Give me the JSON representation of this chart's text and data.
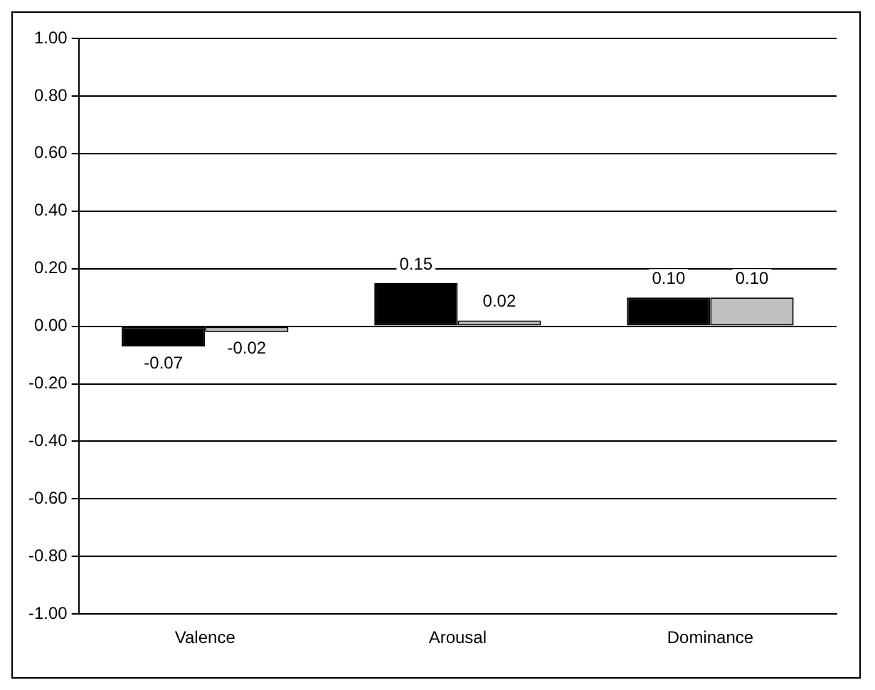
{
  "chart_data": {
    "type": "bar",
    "categories": [
      "Valence",
      "Arousal",
      "Dominance"
    ],
    "series": [
      {
        "color": "#000000",
        "values": [
          -0.07,
          0.15,
          0.1
        ],
        "value_labels": [
          "-0.07",
          "0.15",
          "0.10"
        ]
      },
      {
        "color": "#c0c0c0",
        "values": [
          -0.02,
          0.02,
          0.1
        ],
        "value_labels": [
          "-0.02",
          "0.02",
          "0.10"
        ]
      }
    ],
    "ylim": [
      -1,
      1
    ],
    "yticks": [
      {
        "value": -1,
        "label": "-1.00"
      },
      {
        "value": -0.8,
        "label": "-0.80"
      },
      {
        "value": -0.6,
        "label": "-0.60"
      },
      {
        "value": -0.4,
        "label": "-0.40"
      },
      {
        "value": -0.2,
        "label": "-0.20"
      },
      {
        "value": 0,
        "label": "0.00"
      },
      {
        "value": 0.2,
        "label": "0.20"
      },
      {
        "value": 0.4,
        "label": "0.40"
      },
      {
        "value": 0.6,
        "label": "0.60"
      },
      {
        "value": 0.8,
        "label": "0.80"
      },
      {
        "value": 1,
        "label": "1.00"
      }
    ],
    "grid": "y",
    "legend": false
  }
}
